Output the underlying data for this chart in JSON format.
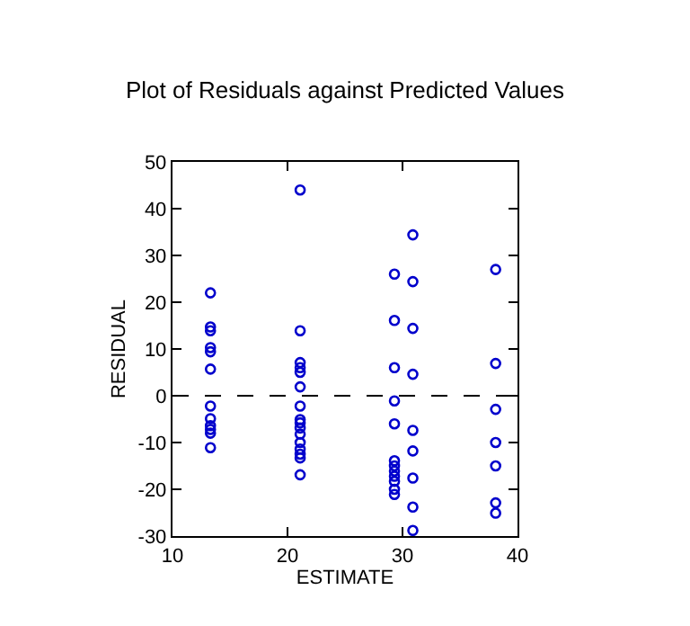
{
  "chart_data": {
    "type": "scatter",
    "title": "Plot of Residuals against Predicted Values",
    "xlabel": "ESTIMATE",
    "ylabel": "RESIDUAL",
    "xlim": [
      10,
      40
    ],
    "xticks": [
      10,
      20,
      30,
      40
    ],
    "ylim": [
      -30,
      50
    ],
    "yticks": [
      -30,
      -20,
      -10,
      0,
      10,
      20,
      30,
      40,
      50
    ],
    "marker": "circle",
    "ref_lines": [
      {
        "axis": "y",
        "value": 0,
        "line_style": "dashed",
        "color": "#000000"
      }
    ],
    "series": [
      {
        "color": "#0000cc",
        "x": [
          13.3,
          13.3,
          13.3,
          13.3,
          13.3,
          13.3,
          13.3,
          13.3,
          13.3,
          13.3,
          13.3,
          13.3,
          21.1,
          21.1,
          21.1,
          21.1,
          21.1,
          21.1,
          21.1,
          21.1,
          21.1,
          21.1,
          21.1,
          21.1,
          21.1,
          21.1,
          21.1,
          21.1,
          29.3,
          29.3,
          29.3,
          29.3,
          29.3,
          29.3,
          29.3,
          29.3,
          29.3,
          29.3,
          29.3,
          29.3,
          30.9,
          30.9,
          30.9,
          30.9,
          30.9,
          30.9,
          30.9,
          30.9,
          30.9,
          38.1,
          38.1,
          38.1,
          38.1,
          38.1,
          38.1,
          38.1
        ],
        "values": [
          22,
          14.7,
          13.9,
          10.3,
          9.4,
          5.7,
          -2.2,
          -4.9,
          -6.4,
          -7.2,
          -8,
          -11.1,
          44,
          13.9,
          7.1,
          6,
          5,
          1.9,
          -2.2,
          -5.1,
          -5.8,
          -6.9,
          -8.2,
          -10,
          -11.4,
          -12.5,
          -13.3,
          -16.9,
          26,
          16.1,
          6,
          -1.1,
          -6,
          -13.9,
          -15,
          -16.1,
          -17.2,
          -18.3,
          -20,
          -21.1,
          34.4,
          24.4,
          14.4,
          4.6,
          -7.4,
          -11.8,
          -17.6,
          -23.8,
          -28.8,
          27,
          6.9,
          -2.9,
          -10,
          -15,
          -22.9,
          -25.1
        ]
      }
    ]
  }
}
